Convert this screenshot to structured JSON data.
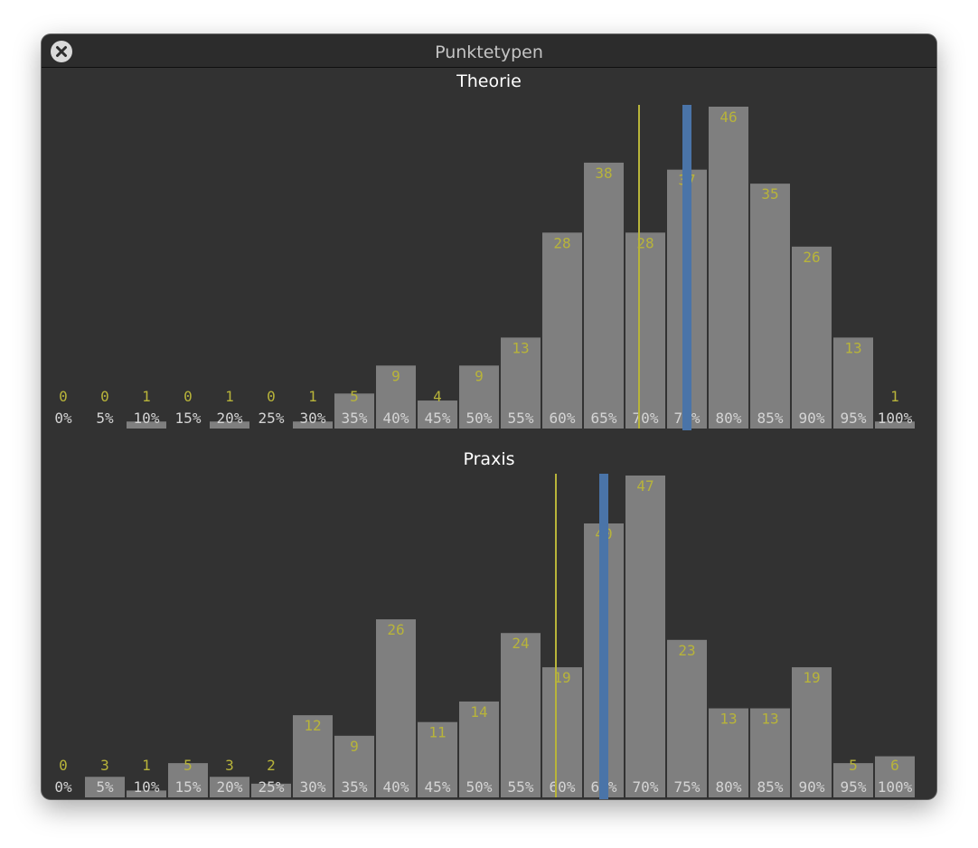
{
  "window": {
    "title": "Punktetypen",
    "close_icon": "close-circle-x-icon"
  },
  "colors": {
    "window_bg": "#323232",
    "bar": "#7f7f7f",
    "value_label": "#b8b43a",
    "tick_label": "#d4d4d4",
    "threshold_line": "#b8b43a",
    "marker": "#4a74a8",
    "panel_title": "#ffffff"
  },
  "chart_data": [
    {
      "type": "bar",
      "title": "Theorie",
      "categories": [
        "0%",
        "5%",
        "10%",
        "15%",
        "20%",
        "25%",
        "30%",
        "35%",
        "40%",
        "45%",
        "50%",
        "55%",
        "60%",
        "65%",
        "70%",
        "75%",
        "80%",
        "85%",
        "90%",
        "95%",
        "100%"
      ],
      "values": [
        0,
        0,
        1,
        0,
        1,
        0,
        1,
        5,
        9,
        4,
        9,
        13,
        28,
        38,
        28,
        37,
        46,
        35,
        26,
        13,
        1
      ],
      "ylim": [
        0,
        46
      ],
      "threshold_line_category": "70%",
      "highlighted_category": "75%",
      "grid": false,
      "legend": "none"
    },
    {
      "type": "bar",
      "title": "Praxis",
      "categories": [
        "0%",
        "5%",
        "10%",
        "15%",
        "20%",
        "25%",
        "30%",
        "35%",
        "40%",
        "45%",
        "50%",
        "55%",
        "60%",
        "65%",
        "70%",
        "75%",
        "80%",
        "85%",
        "90%",
        "95%",
        "100%"
      ],
      "values": [
        0,
        3,
        1,
        5,
        3,
        2,
        12,
        9,
        26,
        11,
        14,
        24,
        19,
        40,
        47,
        23,
        13,
        13,
        19,
        5,
        6
      ],
      "ylim": [
        0,
        47
      ],
      "threshold_line_category": "60%",
      "highlighted_category": "65%",
      "grid": false,
      "legend": "none"
    }
  ]
}
